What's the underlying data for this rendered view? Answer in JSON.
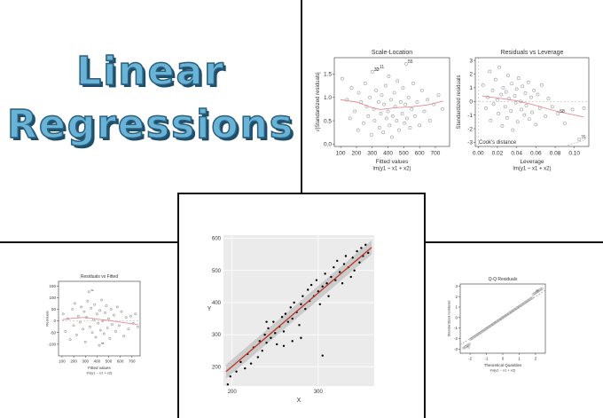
{
  "hero": {
    "line1": "Linear",
    "line2": "Regressions"
  },
  "colors": {
    "title_fill": "#69b3d6",
    "title_outline": "#1d4d69",
    "points": "#999999",
    "smooth": "#e58a9a",
    "fit": "#c0392b",
    "band": "#bdbdbd"
  },
  "chart_data": [
    {
      "id": "scale_location",
      "type": "scatter",
      "title": "Scale-Location",
      "xlabel": "Fitted values",
      "sublabel": "lm(y1 ~ x1 + x2)",
      "ylabel": "√|Standardized residuals|",
      "xlim": [
        60,
        790
      ],
      "ylim": [
        -0.05,
        1.85
      ],
      "xticks": [
        "100",
        "200",
        "300",
        "400",
        "500",
        "600",
        "700"
      ],
      "yticks": [
        "0.0",
        "0.5",
        "1.0",
        "1.5"
      ],
      "annotations": [
        {
          "text": "55",
          "x": 515,
          "y": 1.72
        },
        {
          "text": "32",
          "x": 300,
          "y": 1.55
        },
        {
          "text": "11",
          "x": 335,
          "y": 1.6
        }
      ],
      "points": [
        [
          110,
          1.4
        ],
        [
          140,
          0.95
        ],
        [
          160,
          0.55
        ],
        [
          170,
          1.2
        ],
        [
          190,
          0.7
        ],
        [
          210,
          0.3
        ],
        [
          215,
          1.1
        ],
        [
          230,
          0.9
        ],
        [
          245,
          0.45
        ],
        [
          255,
          1.3
        ],
        [
          265,
          0.8
        ],
        [
          275,
          0.6
        ],
        [
          285,
          1.0
        ],
        [
          295,
          0.2
        ],
        [
          300,
          1.55
        ],
        [
          310,
          0.75
        ],
        [
          315,
          0.5
        ],
        [
          325,
          1.15
        ],
        [
          335,
          1.6
        ],
        [
          340,
          0.9
        ],
        [
          345,
          0.35
        ],
        [
          355,
          0.65
        ],
        [
          360,
          1.05
        ],
        [
          370,
          0.25
        ],
        [
          375,
          0.85
        ],
        [
          385,
          1.25
        ],
        [
          390,
          0.55
        ],
        [
          400,
          0.7
        ],
        [
          405,
          1.45
        ],
        [
          410,
          0.4
        ],
        [
          420,
          0.95
        ],
        [
          425,
          0.15
        ],
        [
          430,
          0.6
        ],
        [
          440,
          1.1
        ],
        [
          445,
          0.8
        ],
        [
          455,
          0.5
        ],
        [
          460,
          1.35
        ],
        [
          470,
          0.3
        ],
        [
          480,
          0.9
        ],
        [
          490,
          0.65
        ],
        [
          495,
          1.2
        ],
        [
          505,
          0.45
        ],
        [
          510,
          0.85
        ],
        [
          515,
          1.72
        ],
        [
          520,
          0.55
        ],
        [
          530,
          1.0
        ],
        [
          540,
          0.35
        ],
        [
          550,
          0.75
        ],
        [
          560,
          1.3
        ],
        [
          570,
          0.6
        ],
        [
          585,
          0.9
        ],
        [
          600,
          0.4
        ],
        [
          615,
          1.15
        ],
        [
          630,
          0.7
        ],
        [
          650,
          0.95
        ],
        [
          665,
          0.5
        ],
        [
          690,
          0.85
        ],
        [
          720,
          1.05
        ],
        [
          745,
          0.75
        ]
      ],
      "smooth": [
        [
          100,
          0.95
        ],
        [
          200,
          0.9
        ],
        [
          300,
          0.78
        ],
        [
          350,
          0.74
        ],
        [
          450,
          0.78
        ],
        [
          550,
          0.8
        ],
        [
          650,
          0.84
        ],
        [
          750,
          0.92
        ]
      ]
    },
    {
      "id": "residuals_leverage",
      "type": "scatter",
      "title": "Residuals vs Leverage",
      "xlabel": "Leverage",
      "sublabel": "lm(y1 ~ x1 + x2)",
      "ylabel": "Standardized residuals",
      "xlim": [
        -0.003,
        0.115
      ],
      "ylim": [
        -3.3,
        3.2
      ],
      "xticks": [
        "0.00",
        "0.02",
        "0.04",
        "0.06",
        "0.08",
        "0.10"
      ],
      "yticks": [
        "-3",
        "-2",
        "-1",
        "0",
        "1",
        "2",
        "3"
      ],
      "legend": "Cook's distance",
      "annotations": [
        {
          "text": "75",
          "x": 0.105,
          "y": -2.8
        },
        {
          "text": "58",
          "x": 0.083,
          "y": -0.9
        }
      ],
      "points": [
        [
          0.005,
          1.2
        ],
        [
          0.008,
          -0.5
        ],
        [
          0.01,
          0.3
        ],
        [
          0.012,
          2.2
        ],
        [
          0.013,
          -1.4
        ],
        [
          0.015,
          0.8
        ],
        [
          0.016,
          -0.2
        ],
        [
          0.018,
          1.6
        ],
        [
          0.02,
          0.1
        ],
        [
          0.021,
          -0.9
        ],
        [
          0.022,
          2.5
        ],
        [
          0.024,
          0.5
        ],
        [
          0.025,
          -1.8
        ],
        [
          0.026,
          1.0
        ],
        [
          0.028,
          -0.4
        ],
        [
          0.029,
          0.7
        ],
        [
          0.03,
          -1.2
        ],
        [
          0.031,
          1.9
        ],
        [
          0.032,
          0.2
        ],
        [
          0.034,
          -0.7
        ],
        [
          0.035,
          1.3
        ],
        [
          0.036,
          -2.1
        ],
        [
          0.038,
          0.4
        ],
        [
          0.039,
          -0.1
        ],
        [
          0.04,
          0.9
        ],
        [
          0.041,
          -1.5
        ],
        [
          0.042,
          1.7
        ],
        [
          0.044,
          0.0
        ],
        [
          0.045,
          -0.6
        ],
        [
          0.046,
          1.1
        ],
        [
          0.048,
          -1.0
        ],
        [
          0.049,
          0.6
        ],
        [
          0.05,
          -0.3
        ],
        [
          0.052,
          1.4
        ],
        [
          0.053,
          -1.3
        ],
        [
          0.055,
          0.3
        ],
        [
          0.056,
          -0.8
        ],
        [
          0.058,
          0.8
        ],
        [
          0.06,
          -1.7
        ],
        [
          0.062,
          0.5
        ],
        [
          0.064,
          -0.5
        ],
        [
          0.066,
          1.2
        ],
        [
          0.07,
          -1.1
        ],
        [
          0.073,
          0.2
        ],
        [
          0.077,
          -0.4
        ],
        [
          0.083,
          -0.9
        ],
        [
          0.09,
          -1.6
        ],
        [
          0.098,
          -0.6
        ],
        [
          0.105,
          -2.8
        ],
        [
          0.11,
          -0.5
        ]
      ],
      "smooth": [
        [
          0.004,
          0.4
        ],
        [
          0.02,
          0.25
        ],
        [
          0.04,
          0.05
        ],
        [
          0.06,
          -0.3
        ],
        [
          0.08,
          -0.7
        ],
        [
          0.1,
          -1.0
        ],
        [
          0.11,
          -1.15
        ]
      ],
      "cooks": [
        [
          0.09,
          -3.3
        ],
        [
          0.1,
          -3.05
        ],
        [
          0.11,
          -2.85
        ]
      ]
    },
    {
      "id": "residuals_fitted",
      "type": "scatter",
      "title": "Residuals vs Fitted",
      "xlabel": "Fitted values",
      "sublabel": "lm(y1 ~ x1 + x2)",
      "ylabel": "Residuals",
      "xlim": [
        70,
        770
      ],
      "ylim": [
        -150,
        170
      ],
      "xticks": [
        "100",
        "200",
        "300",
        "400",
        "500",
        "600",
        "700"
      ],
      "yticks": [
        "-100",
        "-50",
        "0",
        "50",
        "100",
        "150"
      ],
      "annotations": [
        {
          "text": "32",
          "x": 330,
          "y": 125
        },
        {
          "text": "55",
          "x": 420,
          "y": -105
        }
      ],
      "points": [
        [
          110,
          30
        ],
        [
          130,
          -45
        ],
        [
          150,
          10
        ],
        [
          170,
          -80
        ],
        [
          190,
          50
        ],
        [
          200,
          -20
        ],
        [
          210,
          75
        ],
        [
          225,
          -60
        ],
        [
          240,
          20
        ],
        [
          255,
          -5
        ],
        [
          265,
          60
        ],
        [
          280,
          -35
        ],
        [
          290,
          40
        ],
        [
          300,
          -90
        ],
        [
          310,
          15
        ],
        [
          320,
          85
        ],
        [
          330,
          125
        ],
        [
          340,
          -25
        ],
        [
          350,
          55
        ],
        [
          360,
          -50
        ],
        [
          370,
          5
        ],
        [
          380,
          70
        ],
        [
          390,
          -70
        ],
        [
          400,
          30
        ],
        [
          410,
          -10
        ],
        [
          420,
          -105
        ],
        [
          425,
          45
        ],
        [
          430,
          -40
        ],
        [
          440,
          90
        ],
        [
          450,
          0
        ],
        [
          460,
          -55
        ],
        [
          470,
          35
        ],
        [
          480,
          65
        ],
        [
          490,
          -30
        ],
        [
          500,
          10
        ],
        [
          510,
          -75
        ],
        [
          520,
          50
        ],
        [
          530,
          -15
        ],
        [
          545,
          25
        ],
        [
          560,
          -45
        ],
        [
          575,
          60
        ],
        [
          590,
          -20
        ],
        [
          610,
          40
        ],
        [
          630,
          -65
        ],
        [
          650,
          15
        ],
        [
          670,
          -35
        ],
        [
          690,
          20
        ],
        [
          710,
          -10
        ],
        [
          730,
          30
        ],
        [
          750,
          -25
        ]
      ],
      "smooth": [
        [
          100,
          5
        ],
        [
          200,
          12
        ],
        [
          300,
          15
        ],
        [
          400,
          8
        ],
        [
          500,
          2
        ],
        [
          600,
          -5
        ],
        [
          700,
          -12
        ],
        [
          750,
          -15
        ]
      ]
    },
    {
      "id": "xy_fit",
      "type": "scatter",
      "title": "",
      "xlabel": "X",
      "ylabel": "Y",
      "xlim": [
        190,
        365
      ],
      "ylim": [
        140,
        610
      ],
      "xticks": [
        "200",
        "300"
      ],
      "ytick_values": [
        200,
        300,
        400,
        500,
        600
      ],
      "xtick_values": [
        200,
        300
      ],
      "yticks": [
        "200",
        "300",
        "400",
        "500",
        "600"
      ],
      "points": [
        [
          195,
          145
        ],
        [
          198,
          170
        ],
        [
          205,
          185
        ],
        [
          210,
          215
        ],
        [
          215,
          195
        ],
        [
          218,
          240
        ],
        [
          222,
          210
        ],
        [
          225,
          260
        ],
        [
          230,
          230
        ],
        [
          232,
          280
        ],
        [
          235,
          250
        ],
        [
          238,
          300
        ],
        [
          240,
          275
        ],
        [
          242,
          320
        ],
        [
          245,
          290
        ],
        [
          248,
          340
        ],
        [
          250,
          305
        ],
        [
          252,
          270
        ],
        [
          255,
          325
        ],
        [
          258,
          355
        ],
        [
          260,
          310
        ],
        [
          262,
          365
        ],
        [
          265,
          340
        ],
        [
          268,
          385
        ],
        [
          270,
          350
        ],
        [
          272,
          400
        ],
        [
          275,
          370
        ],
        [
          278,
          330
        ],
        [
          280,
          395
        ],
        [
          282,
          420
        ],
        [
          285,
          380
        ],
        [
          288,
          440
        ],
        [
          290,
          405
        ],
        [
          292,
          455
        ],
        [
          295,
          420
        ],
        [
          298,
          470
        ],
        [
          300,
          435
        ],
        [
          302,
          395
        ],
        [
          305,
          450
        ],
        [
          308,
          490
        ],
        [
          310,
          460
        ],
        [
          312,
          420
        ],
        [
          315,
          480
        ],
        [
          318,
          510
        ],
        [
          320,
          470
        ],
        [
          322,
          530
        ],
        [
          325,
          495
        ],
        [
          328,
          460
        ],
        [
          330,
          520
        ],
        [
          332,
          545
        ],
        [
          335,
          510
        ],
        [
          338,
          480
        ],
        [
          340,
          540
        ],
        [
          342,
          500
        ],
        [
          345,
          560
        ],
        [
          348,
          525
        ],
        [
          350,
          570
        ],
        [
          352,
          545
        ],
        [
          355,
          580
        ],
        [
          358,
          555
        ],
        [
          305,
          235
        ],
        [
          240,
          340
        ],
        [
          270,
          280
        ],
        [
          280,
          290
        ],
        [
          260,
          265
        ]
      ],
      "fit_line": [
        [
          193,
          185
        ],
        [
          362,
          572
        ]
      ]
    },
    {
      "id": "qq",
      "type": "scatter",
      "title": "Q-Q Residuals",
      "xlabel": "Theoretical Quantiles",
      "sublabel": "lm(y1 ~ x1 + x2)",
      "ylabel": "Standardized residuals",
      "xlim": [
        -2.6,
        2.6
      ],
      "ylim": [
        -3.4,
        3.2
      ],
      "xticks": [
        "-2",
        "-1",
        "0",
        "1",
        "2"
      ],
      "yticks": [
        "-3",
        "-2",
        "-1",
        "0",
        "1",
        "2",
        "3"
      ],
      "annotations": [
        {
          "text": "55",
          "x": 1.9,
          "y": 2.4
        },
        {
          "text": "75",
          "x": -2.3,
          "y": -3.0
        }
      ],
      "ref_line": [
        [
          -2.6,
          -2.6
        ],
        [
          2.6,
          2.6
        ]
      ]
    }
  ]
}
